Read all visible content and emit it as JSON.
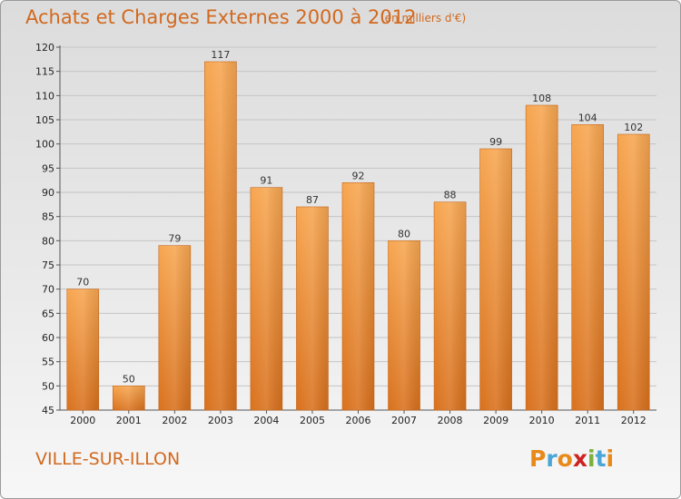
{
  "title": "Achats et Charges Externes 2000 à 2012",
  "subtitle": "(en milliers d'€)",
  "city": "VILLE-SUR-ILLON",
  "logo": {
    "letters": [
      "P",
      "r",
      "o",
      "x",
      "i",
      "t",
      "i"
    ],
    "colors": [
      "#e8891a",
      "#4aa5d9",
      "#e8891a",
      "#cc2222",
      "#7bb13c",
      "#4aa5d9",
      "#e8891a"
    ]
  },
  "chart_data": {
    "type": "bar",
    "categories": [
      "2000",
      "2001",
      "2002",
      "2003",
      "2004",
      "2005",
      "2006",
      "2007",
      "2008",
      "2009",
      "2010",
      "2011",
      "2012"
    ],
    "values": [
      70,
      50,
      79,
      117,
      91,
      87,
      92,
      80,
      88,
      99,
      108,
      104,
      102
    ],
    "ylim": [
      45,
      120
    ],
    "yticks": [
      45,
      50,
      55,
      60,
      65,
      70,
      75,
      80,
      85,
      90,
      95,
      100,
      105,
      110,
      115,
      120
    ],
    "grid": true,
    "bar_color": "#f0983e"
  }
}
